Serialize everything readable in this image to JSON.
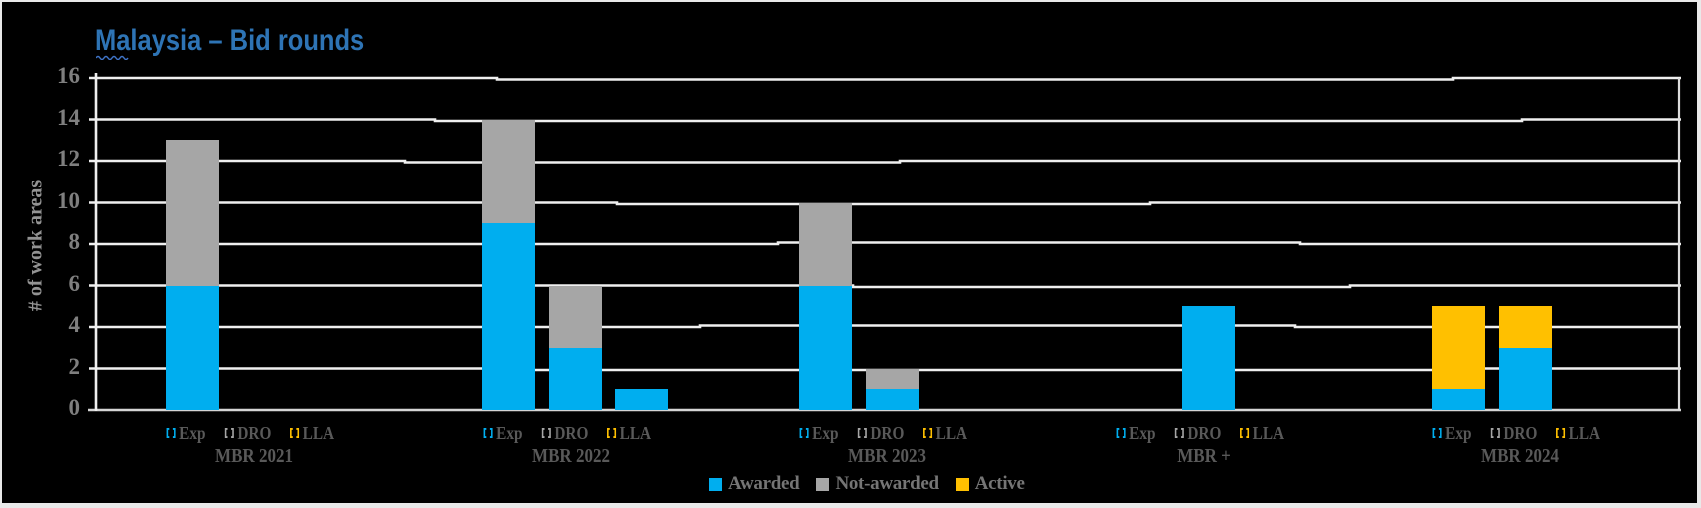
{
  "title": {
    "text": "Malaysia – Bid rounds",
    "color": "#2E74B5"
  },
  "chart_data": {
    "type": "bar",
    "stacked": true,
    "title": "Malaysia – Bid rounds",
    "ylabel": "# of work areas",
    "ylim": [
      0,
      16
    ],
    "ytick_interval": 2,
    "grid": true,
    "legend_position": "bottom",
    "categories": [
      "MBR 2021",
      "MBR 2022",
      "MBR 2023",
      "MBR +",
      "MBR 2024"
    ],
    "subcategories": [
      "Exp",
      "DRO",
      "LLA"
    ],
    "subcategory_icon_colors": {
      "Exp": "#00AEEF",
      "DRO": "#A6A6A6",
      "LLA": "#FFC000"
    },
    "series": [
      {
        "name": "Awarded",
        "color": "#00AEEF",
        "values": [
          [
            6,
            0,
            0
          ],
          [
            9,
            3,
            1
          ],
          [
            6,
            1,
            0
          ],
          [
            0,
            5,
            0
          ],
          [
            1,
            3,
            0
          ]
        ]
      },
      {
        "name": "Not-awarded",
        "color": "#A6A6A6",
        "values": [
          [
            7,
            0,
            0
          ],
          [
            5,
            3,
            0
          ],
          [
            4,
            1,
            0
          ],
          [
            0,
            0,
            0
          ],
          [
            0,
            0,
            0
          ]
        ]
      },
      {
        "name": "Active",
        "color": "#FFC000",
        "values": [
          [
            0,
            0,
            0
          ],
          [
            0,
            0,
            0
          ],
          [
            0,
            0,
            0
          ],
          [
            0,
            0,
            0
          ],
          [
            4,
            2,
            0
          ]
        ]
      }
    ]
  }
}
